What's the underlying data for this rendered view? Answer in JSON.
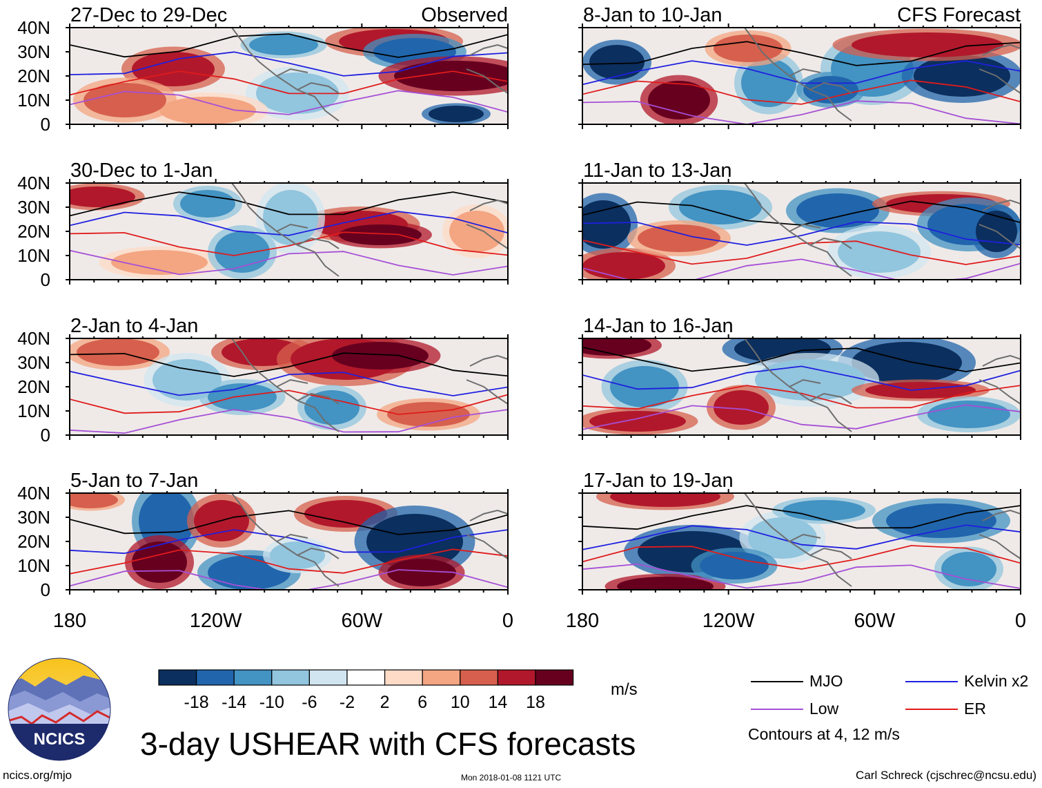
{
  "panels": [
    {
      "period": "27-Dec to 29-Dec",
      "tag": "Observed"
    },
    {
      "period": "8-Jan to 10-Jan",
      "tag": "CFS Forecast"
    },
    {
      "period": "30-Dec to 1-Jan",
      "tag": ""
    },
    {
      "period": "11-Jan to 13-Jan",
      "tag": ""
    },
    {
      "period": "2-Jan to 4-Jan",
      "tag": ""
    },
    {
      "period": "14-Jan to 16-Jan",
      "tag": ""
    },
    {
      "period": "5-Jan to 7-Jan",
      "tag": ""
    },
    {
      "period": "17-Jan to 19-Jan",
      "tag": ""
    }
  ],
  "lat_labels": [
    "40N",
    "30N",
    "20N",
    "10N",
    "0"
  ],
  "lon_labels": [
    "180",
    "120W",
    "60W",
    "0"
  ],
  "colorbar": {
    "labels": [
      "-18",
      "-14",
      "-10",
      "-6",
      "-2",
      "2",
      "6",
      "10",
      "14",
      "18"
    ],
    "colors": [
      "#0b2f5e",
      "#2166ac",
      "#4393c3",
      "#92c5de",
      "#d1e5f0",
      "#ffffff",
      "#fddbc7",
      "#f4a582",
      "#d6604d",
      "#b2182b",
      "#67001f"
    ]
  },
  "units": "m/s",
  "legend": [
    {
      "label": "MJO",
      "color": "#000000"
    },
    {
      "label": "Kelvin x2",
      "color": "#1f1fdf"
    },
    {
      "label": "Low",
      "color": "#a64fd6"
    },
    {
      "label": "ER",
      "color": "#e01b1b"
    }
  ],
  "contour_note": "Contours at 4, 12 m/s",
  "title": "3-day USHEAR with CFS forecasts",
  "logo_text": "NCICS",
  "footer": {
    "left": "ncics.org/mjo",
    "middle": "Mon 2018-01-08 1121 UTC",
    "right": "Carl Schreck (cjschrec@ncsu.edu)"
  }
}
